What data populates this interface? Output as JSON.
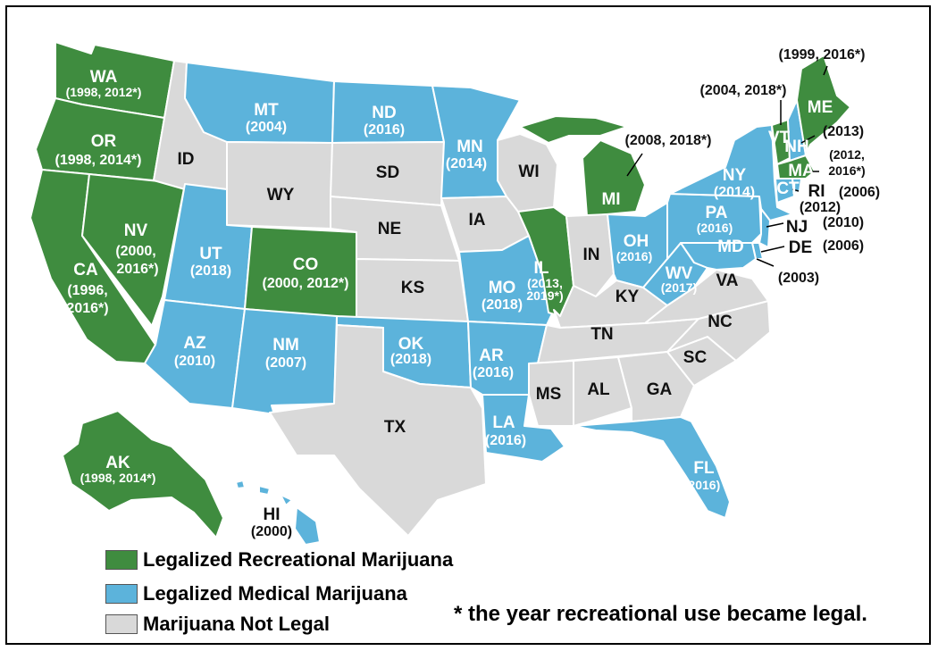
{
  "colors": {
    "recreational": "#3f8c3f",
    "medical": "#5cb3db",
    "not_legal": "#d9d9d9",
    "border": "#ffffff"
  },
  "states": {
    "WA": {
      "abbr": "WA",
      "years": "(1998, 2012*)",
      "status": "recreational"
    },
    "OR": {
      "abbr": "OR",
      "years": "(1998, 2014*)",
      "status": "recreational"
    },
    "CA": {
      "abbr": "CA",
      "years_line1": "(1996,",
      "years_line2": "2016*)",
      "status": "recreational"
    },
    "NV": {
      "abbr": "NV",
      "years_line1": "(2000,",
      "years_line2": "2016*)",
      "status": "recreational"
    },
    "ID": {
      "abbr": "ID",
      "status": "not_legal"
    },
    "MT": {
      "abbr": "MT",
      "years": "(2004)",
      "status": "medical"
    },
    "WY": {
      "abbr": "WY",
      "status": "not_legal"
    },
    "UT": {
      "abbr": "UT",
      "years": "(2018)",
      "status": "medical"
    },
    "CO": {
      "abbr": "CO",
      "years": "(2000, 2012*)",
      "status": "recreational"
    },
    "AZ": {
      "abbr": "AZ",
      "years": "(2010)",
      "status": "medical"
    },
    "NM": {
      "abbr": "NM",
      "years": "(2007)",
      "status": "medical"
    },
    "ND": {
      "abbr": "ND",
      "years": "(2016)",
      "status": "medical"
    },
    "SD": {
      "abbr": "SD",
      "status": "not_legal"
    },
    "NE": {
      "abbr": "NE",
      "status": "not_legal"
    },
    "KS": {
      "abbr": "KS",
      "status": "not_legal"
    },
    "OK": {
      "abbr": "OK",
      "years": "(2018)",
      "status": "medical"
    },
    "TX": {
      "abbr": "TX",
      "status": "not_legal"
    },
    "MN": {
      "abbr": "MN",
      "years": "(2014)",
      "status": "medical"
    },
    "IA": {
      "abbr": "IA",
      "status": "not_legal"
    },
    "MO": {
      "abbr": "MO",
      "years": "(2018)",
      "status": "medical"
    },
    "AR": {
      "abbr": "AR",
      "years": "(2016)",
      "status": "medical"
    },
    "LA": {
      "abbr": "LA",
      "years": "(2016)",
      "status": "medical"
    },
    "WI": {
      "abbr": "WI",
      "status": "not_legal"
    },
    "IL": {
      "abbr": "IL",
      "years_line1": "(2013,",
      "years_line2": "2019*)",
      "status": "recreational"
    },
    "MI": {
      "abbr": "MI",
      "years": "(2008, 2018*)",
      "status": "recreational"
    },
    "IN": {
      "abbr": "IN",
      "status": "not_legal"
    },
    "OH": {
      "abbr": "OH",
      "years": "(2016)",
      "status": "medical"
    },
    "KY": {
      "abbr": "KY",
      "status": "not_legal"
    },
    "TN": {
      "abbr": "TN",
      "status": "not_legal"
    },
    "MS": {
      "abbr": "MS",
      "status": "not_legal"
    },
    "AL": {
      "abbr": "AL",
      "status": "not_legal"
    },
    "GA": {
      "abbr": "GA",
      "status": "not_legal"
    },
    "FL": {
      "abbr": "FL",
      "years": "(2016)",
      "status": "medical"
    },
    "SC": {
      "abbr": "SC",
      "status": "not_legal"
    },
    "NC": {
      "abbr": "NC",
      "status": "not_legal"
    },
    "VA": {
      "abbr": "VA",
      "status": "not_legal"
    },
    "WV": {
      "abbr": "WV",
      "years": "(2017)",
      "status": "medical"
    },
    "PA": {
      "abbr": "PA",
      "years": "(2016)",
      "status": "medical"
    },
    "NY": {
      "abbr": "NY",
      "years": "(2014)",
      "status": "medical"
    },
    "VT": {
      "abbr": "VT",
      "years": "(2004, 2018*)",
      "status": "recreational"
    },
    "NH": {
      "abbr": "NH",
      "years": "(2013)",
      "status": "medical"
    },
    "ME": {
      "abbr": "ME",
      "years": "(1999, 2016*)",
      "status": "recreational"
    },
    "MA": {
      "abbr": "MA",
      "years_line1": "(2012,",
      "years_line2": "2016*)",
      "status": "recreational"
    },
    "CT": {
      "abbr": "CT",
      "years": "(2012)",
      "status": "medical"
    },
    "RI": {
      "abbr": "RI",
      "years": "(2006)",
      "status": "medical"
    },
    "NJ": {
      "abbr": "NJ",
      "years": "(2010)",
      "status": "medical"
    },
    "DE": {
      "abbr": "DE",
      "years": "(2006)",
      "status": "medical"
    },
    "MD": {
      "abbr": "MD",
      "years": "(2003)",
      "status": "medical"
    },
    "AK": {
      "abbr": "AK",
      "years": "(1998, 2014*)",
      "status": "recreational"
    },
    "HI": {
      "abbr": "HI",
      "years": "(2000)",
      "status": "medical"
    }
  },
  "legend": {
    "recreational": "Legalized Recreational Marijuana",
    "medical": "Legalized Medical Marijuana",
    "not_legal": "Marijuana Not Legal"
  },
  "footnote": "* the year recreational use became legal."
}
